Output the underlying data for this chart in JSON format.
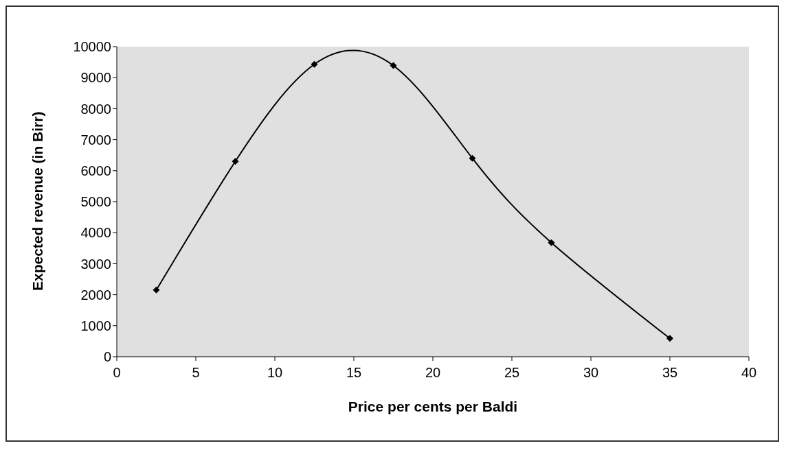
{
  "chart_data": {
    "type": "line",
    "xlabel": "Price per cents per Baldi",
    "ylabel": "Expected revenue (in Birr)",
    "x": [
      2.5,
      7.5,
      12.5,
      17.5,
      22.5,
      27.5,
      35
    ],
    "series": [
      {
        "color": "#000000",
        "values": [
          2150,
          6300,
          9430,
          9390,
          6400,
          3680,
          590
        ]
      }
    ],
    "xlim": [
      0,
      40
    ],
    "xticks": [
      0,
      5,
      10,
      15,
      20,
      25,
      30,
      35,
      40
    ],
    "ylim": [
      0,
      10000
    ],
    "yticks": [
      0,
      1000,
      2000,
      3000,
      4000,
      5000,
      6000,
      7000,
      8000,
      9000,
      10000
    ],
    "marker": "diamond",
    "line_style": "solid",
    "legend": false,
    "grid": false
  }
}
